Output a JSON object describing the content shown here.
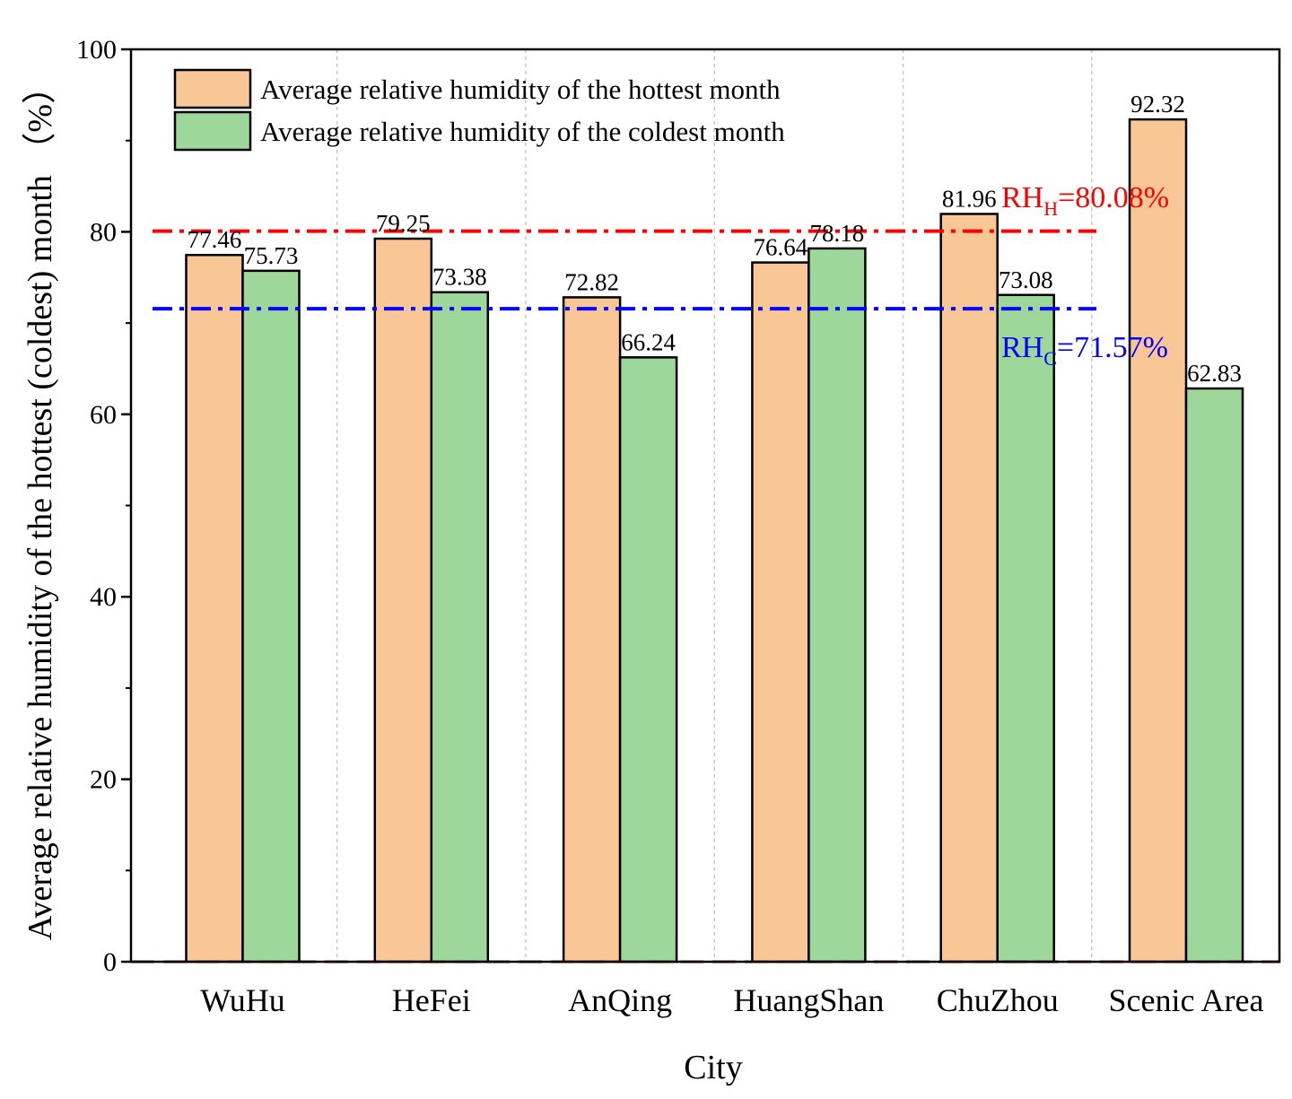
{
  "chart_data": {
    "type": "bar",
    "title": "",
    "xlabel": "City",
    "ylabel": "Average relative humidity of the hottest (coldest) month （%）",
    "ylim": [
      0,
      100
    ],
    "yticks": [
      0,
      20,
      40,
      60,
      80,
      100
    ],
    "categories": [
      "WuHu",
      "HeFei",
      "AnQing",
      "HuangShan",
      "ChuZhou",
      "Scenic Area"
    ],
    "series": [
      {
        "name": "Average relative humidity of the hottest month",
        "color": "#F9C696",
        "values": [
          77.46,
          79.25,
          72.82,
          76.64,
          81.96,
          92.32
        ],
        "labels": [
          "77.46",
          "79.25",
          "72.82",
          "76.64",
          "81.96",
          "92.32"
        ]
      },
      {
        "name": "Average relative humidity of the coldest month",
        "color": "#9ED79A",
        "values": [
          75.73,
          73.38,
          66.24,
          78.18,
          73.08,
          62.83
        ],
        "labels": [
          "75.73",
          "73.38",
          "66.24",
          "78.18",
          "73.08",
          "62.83"
        ]
      }
    ],
    "reference_lines": [
      {
        "id": "rh_h",
        "value": 80.08,
        "color": "#FF0000",
        "main": "RH",
        "sub": "H",
        "rest": "=80.08%"
      },
      {
        "id": "rh_c",
        "value": 71.57,
        "color": "#0000FF",
        "main": "RH",
        "sub": "C",
        "rest": "=71.57%"
      }
    ],
    "legend_position": "top-left",
    "grid": "vertical dotted separators between categories"
  }
}
